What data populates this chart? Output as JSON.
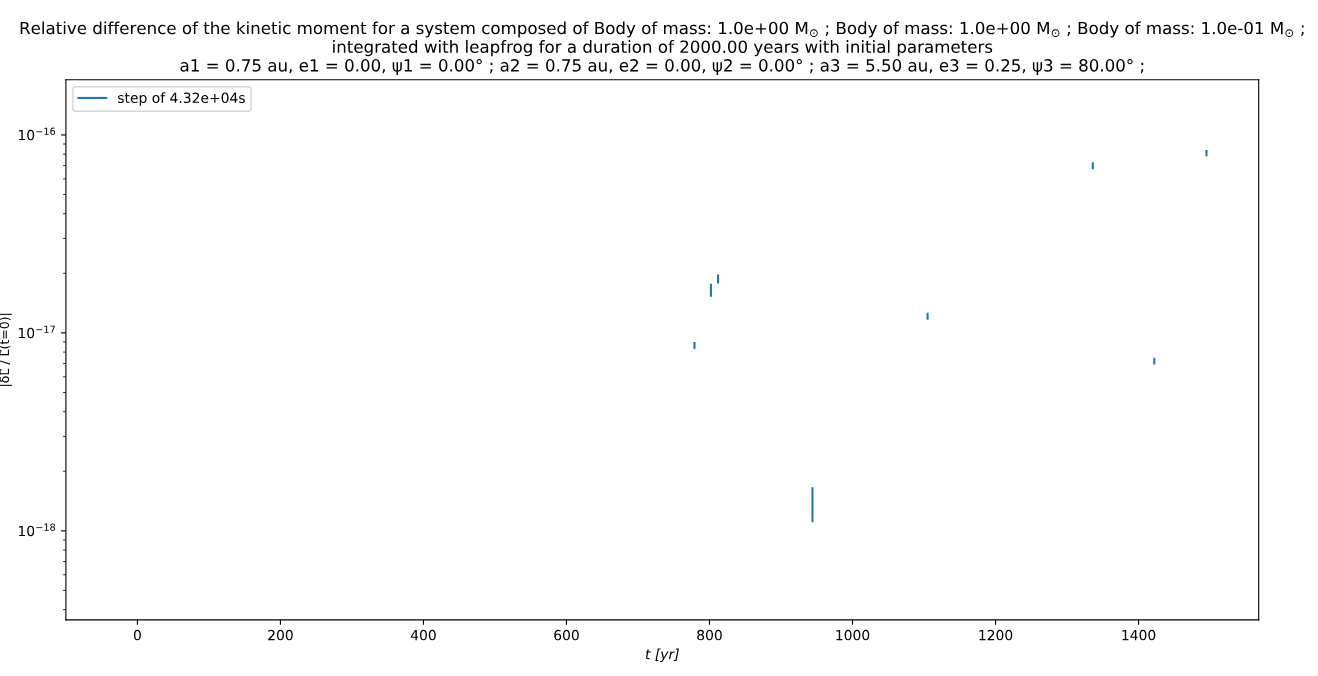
{
  "chart_data": {
    "type": "line",
    "title": "Relative difference of the kinetic moment for a system composed of Body of mass: 1.0e+00 M$_{⊙}$ ; Body of mass: 1.0e+00 M$_{⊙}$ ; Body of mass: 1.0e-01 M$_{⊙}$ ;\nintegrated with leapfrog for a duration of 2000.00 years with initial parameters\na1 = 0.75 au, e1 = 0.00, ψ1 = 0.00° ; a2 = 0.75 au, e2 = 0.00, ψ2 = 0.00° ; a3 = 5.50 au, e3 = 0.25, ψ3 = 80.00° ;",
    "xlabel": "t [yr]",
    "ylabel": "|δL⃗ / L⃗(t=0)|",
    "series": [
      {
        "name": "step of 4.32e+04s",
        "color": "#1f77b4",
        "x": [
          779,
          779,
          779.5,
          802,
          802,
          802.3,
          812,
          812,
          812.3,
          944,
          944,
          944.3,
          1105,
          1105,
          1105.3,
          1336,
          1336,
          1336.3,
          1422,
          1422,
          1422.3,
          1495,
          1495
        ],
        "values": [
          8.9e-18,
          8.4e-18,
          null,
          1.75e-17,
          1.54e-17,
          null,
          1.95e-17,
          1.8e-17,
          null,
          1.64e-18,
          1.12e-18,
          null,
          1.25e-17,
          1.18e-17,
          null,
          7.2e-17,
          6.8e-17,
          null,
          7.4e-18,
          7e-18,
          null,
          8.3e-17,
          7.9e-17
        ]
      }
    ],
    "log": "y",
    "xlim": [
      -100,
      1568
    ],
    "ylim": [
      3.55e-19,
      1.9e-16
    ],
    "xticks": [
      0,
      200,
      400,
      600,
      800,
      1000,
      1200,
      1400
    ],
    "yticks": [
      {
        "value": 1e-18,
        "label": "10$^{−18}$"
      },
      {
        "value": 1e-17,
        "label": "10$^{−17}$"
      },
      {
        "value": 1e-16,
        "label": "10$^{−16}$"
      }
    ],
    "legend": "top left",
    "grid": false,
    "line_style": "solid",
    "marker": "none"
  }
}
